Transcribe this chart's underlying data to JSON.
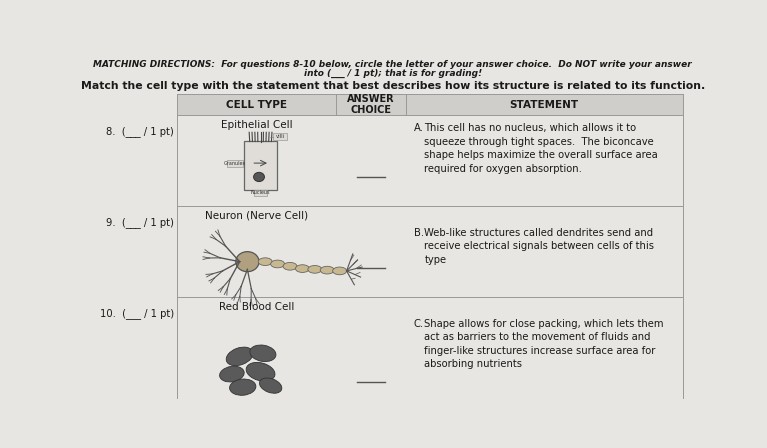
{
  "bg_color": "#e8e6e2",
  "header_bg": "#e8e6e2",
  "table_header_bg": "#d0ceca",
  "table_bg": "#e8e6e2",
  "text_color": "#1a1a1a",
  "table_line_color": "#999999",
  "header_italic": "MATCHING DIRECTIONS:",
  "header_rest": "  For questions 8-10 below, circle the letter of your answer choice.  Do NOT write your answer",
  "header_line2": "into (___ / 1 pt); that is for grading!",
  "subtitle": "Match the cell type with the statement that best describes how its structure is related to its function.",
  "col1_header": "CELL TYPE",
  "col2_header": "ANSWER\nCHOICE",
  "col3_header": "STATEMENT",
  "q8_num": "8.  (___ / 1 pt)",
  "q8_cell": "Epithelial Cell",
  "q9_num": "9.  (___ / 1 pt)",
  "q9_cell": "Neuron (Nerve Cell)",
  "q10_num": "10.  (___ / 1 pt)",
  "q10_cell": "Red Blood Cell",
  "stmtA_letter": "A.",
  "stmtA_body": "This cell has no nucleus, which allows it to\nsqueeze through tight spaces.  The biconcave\nshape helps maximize the overall surface area\nrequired for oxygen absorption.",
  "stmtB_letter": "B.",
  "stmtB_body": "Web-like structures called dendrites send and\nreceive electrical signals between cells of this\ntype",
  "stmtC_letter": "C.",
  "stmtC_body": "Shape allows for close packing, which lets them\nact as barriers to the movement of fluids and\nfinger-like structures increase surface area for\nabsorbing nutrients",
  "cell_fill": "#dedad4",
  "cell_edge": "#777777",
  "neuron_soma_fill": "#b8a888",
  "neuron_axon_fill": "#ccc0a0",
  "rbc_fill": "#5a5a5a",
  "rbc_edge": "#333333"
}
